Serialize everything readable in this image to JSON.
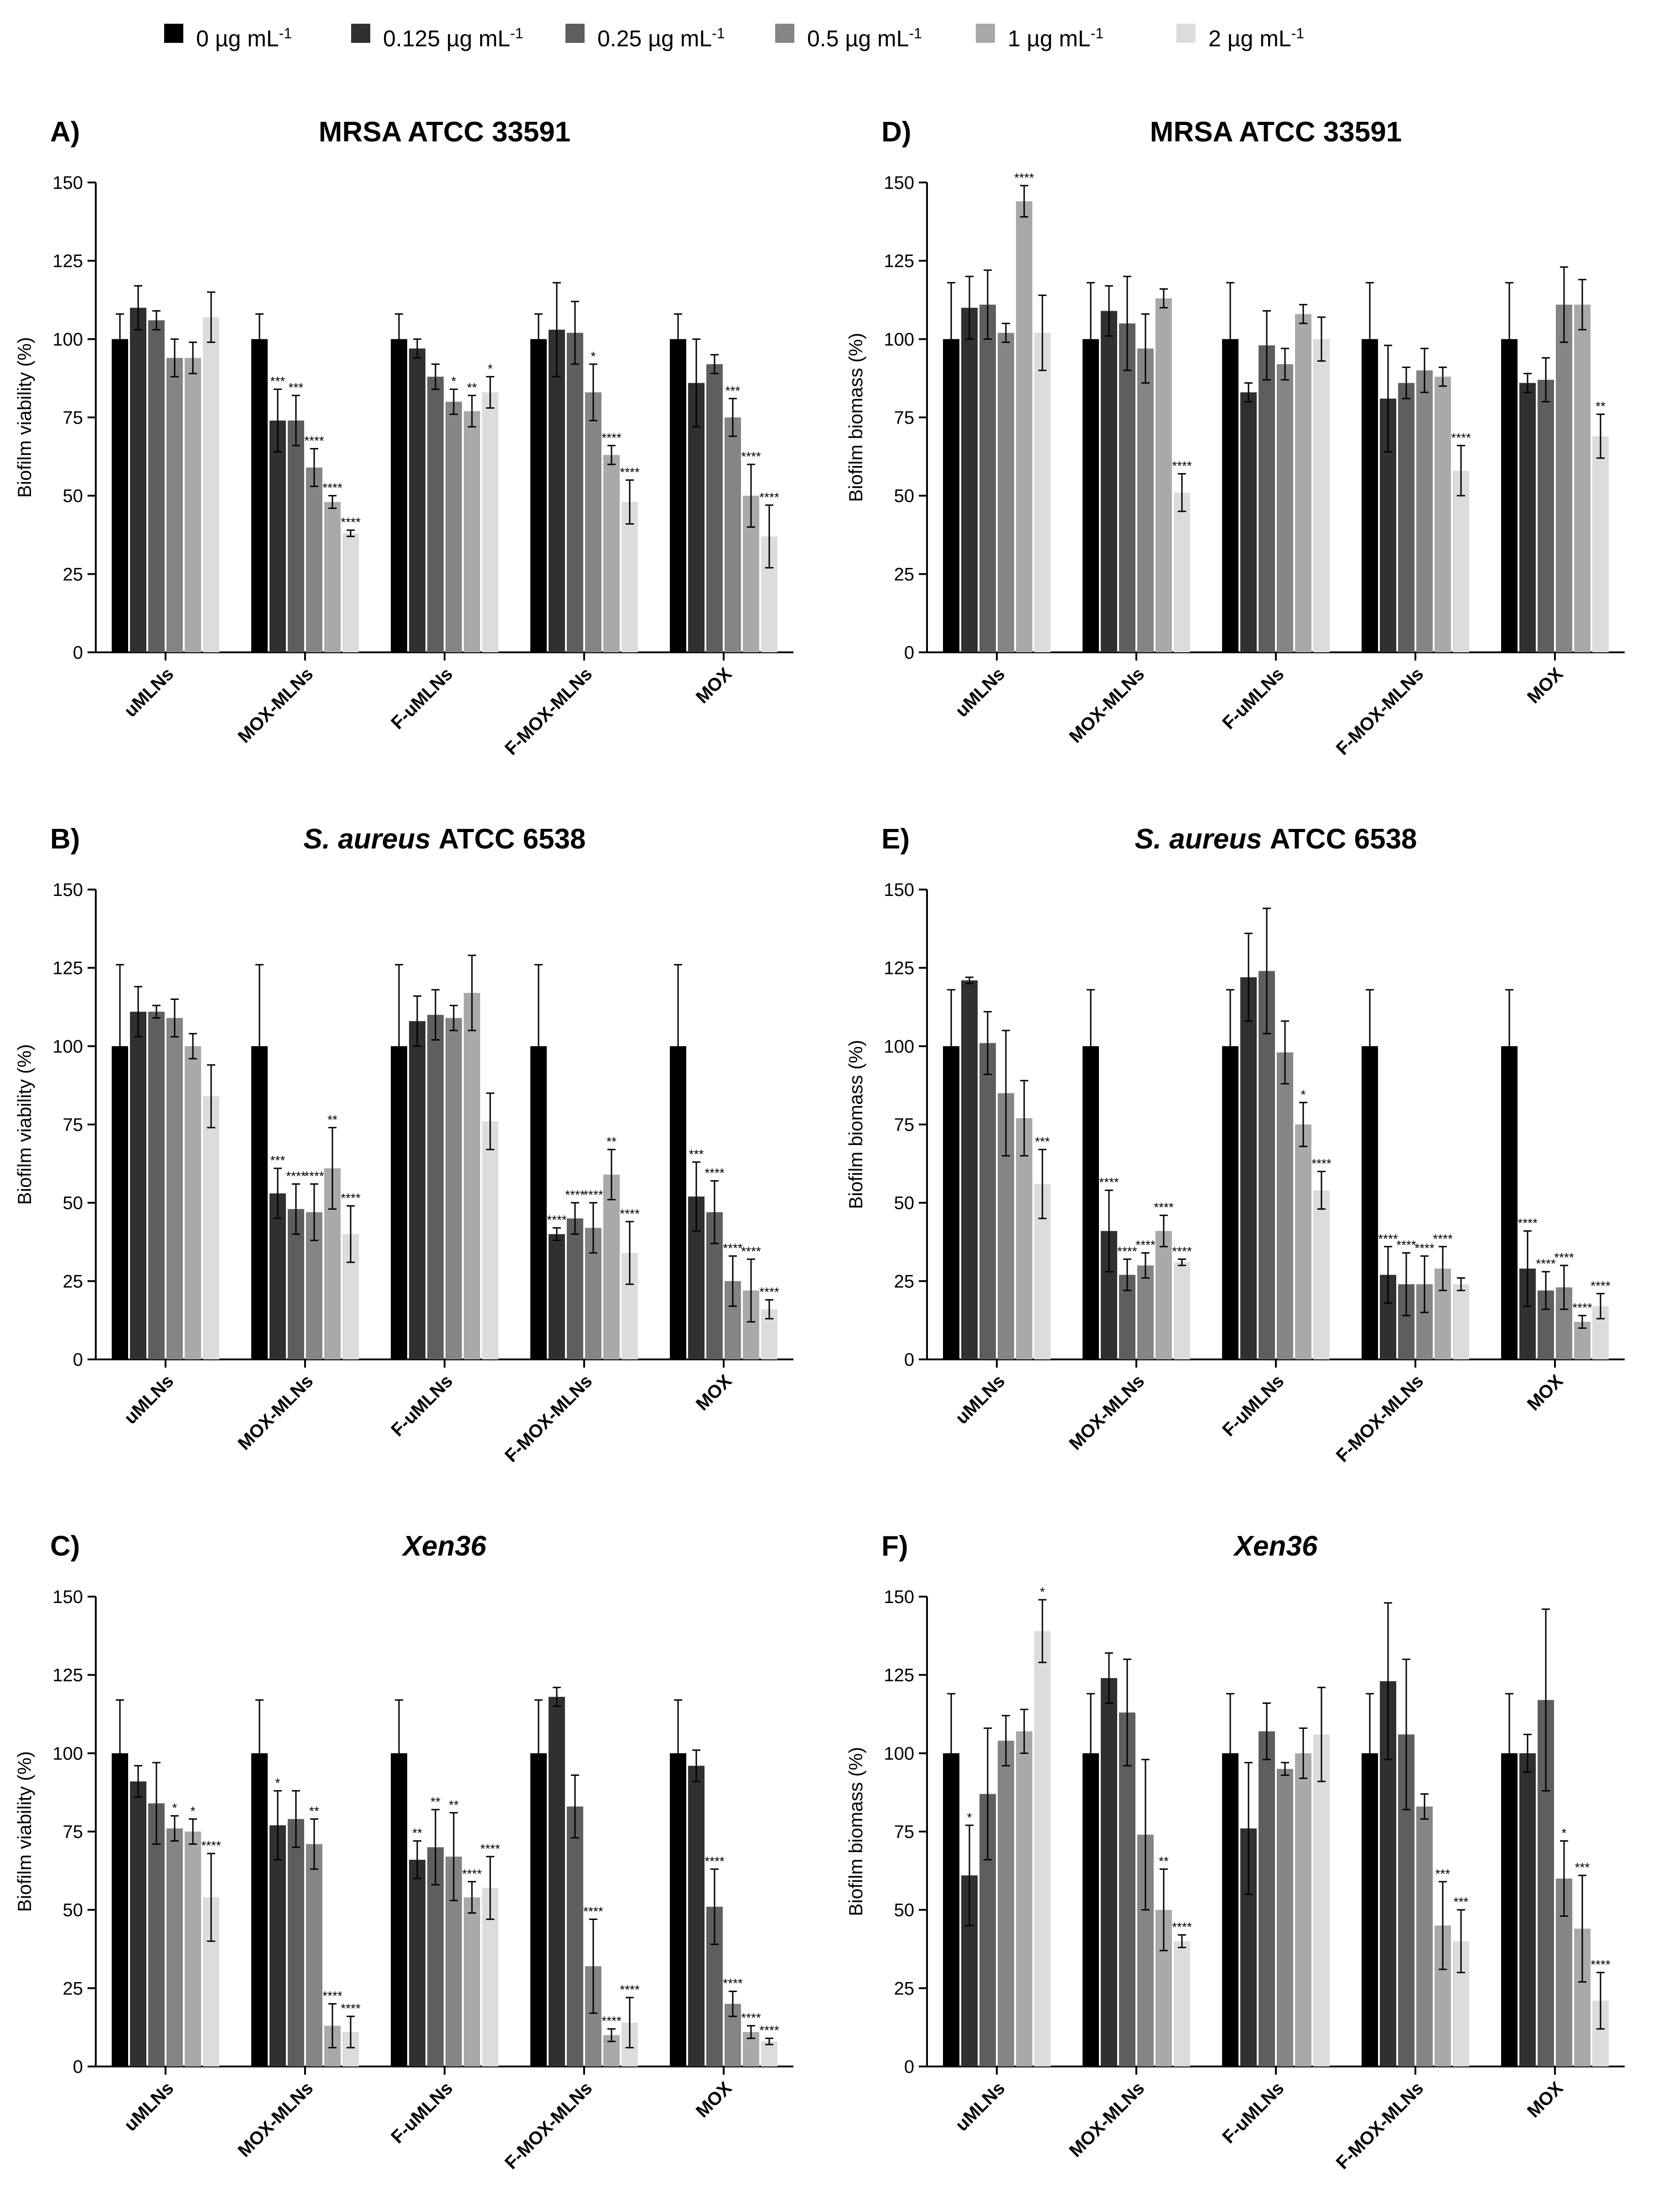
{
  "legend": {
    "items": [
      {
        "label": "0 µg mL",
        "sup": "-1",
        "color": "#000000"
      },
      {
        "label": "0.125 µg mL",
        "sup": "-1",
        "color": "#303030"
      },
      {
        "label": "0.25 µg mL",
        "sup": "-1",
        "color": "#5e5e5e"
      },
      {
        "label": "0.5 µg mL",
        "sup": "-1",
        "color": "#858585"
      },
      {
        "label": "1 µg mL",
        "sup": "-1",
        "color": "#a9a9a9"
      },
      {
        "label": "2 µg mL",
        "sup": "-1",
        "color": "#dcdcdc"
      }
    ]
  },
  "chart_data": [
    {
      "panel": "A)",
      "type": "bar",
      "title": "MRSA ATCC 33591",
      "title_italic": "",
      "ylabel": "Biofilm viability (%)",
      "ylim": [
        0,
        150
      ],
      "yticks": [
        0,
        25,
        50,
        75,
        100,
        125,
        150
      ],
      "categories": [
        "uMLNs",
        "MOX-MLNs",
        "F-uMLNs",
        "F-MOX-MLNs",
        "MOX"
      ],
      "values": [
        [
          100,
          110,
          106,
          94,
          94,
          107
        ],
        [
          100,
          74,
          74,
          59,
          48,
          38
        ],
        [
          100,
          97,
          88,
          80,
          77,
          83
        ],
        [
          100,
          103,
          102,
          83,
          63,
          48
        ],
        [
          100,
          86,
          92,
          75,
          50,
          37
        ]
      ],
      "errors": [
        [
          8,
          7,
          3,
          6,
          5,
          8
        ],
        [
          8,
          10,
          8,
          6,
          2,
          1
        ],
        [
          8,
          3,
          4,
          4,
          5,
          5
        ],
        [
          8,
          15,
          10,
          9,
          3,
          7
        ],
        [
          8,
          14,
          3,
          6,
          10,
          10
        ]
      ],
      "stars": [
        [
          "",
          "",
          "",
          "",
          "",
          ""
        ],
        [
          "",
          "***",
          "***",
          "****",
          "****",
          "****"
        ],
        [
          "",
          "",
          "",
          "*",
          "**",
          "*"
        ],
        [
          "",
          "",
          "",
          "*",
          "****",
          "****"
        ],
        [
          "",
          "",
          "",
          "***",
          "****",
          "****"
        ]
      ]
    },
    {
      "panel": "D)",
      "type": "bar",
      "title": "MRSA ATCC 33591",
      "title_italic": "",
      "ylabel": "Biofilm biomass (%)",
      "ylim": [
        0,
        150
      ],
      "yticks": [
        0,
        25,
        50,
        75,
        100,
        125,
        150
      ],
      "categories": [
        "uMLNs",
        "MOX-MLNs",
        "F-uMLNs",
        "F-MOX-MLNs",
        "MOX"
      ],
      "values": [
        [
          100,
          110,
          111,
          102,
          144,
          102
        ],
        [
          100,
          109,
          105,
          97,
          113,
          51
        ],
        [
          100,
          83,
          98,
          92,
          108,
          100
        ],
        [
          100,
          81,
          86,
          90,
          88,
          58
        ],
        [
          100,
          86,
          87,
          111,
          111,
          69
        ]
      ],
      "errors": [
        [
          18,
          10,
          11,
          3,
          5,
          12
        ],
        [
          18,
          8,
          15,
          11,
          3,
          6
        ],
        [
          18,
          3,
          11,
          5,
          3,
          7
        ],
        [
          18,
          17,
          5,
          7,
          3,
          8
        ],
        [
          18,
          3,
          7,
          12,
          8,
          7
        ]
      ],
      "stars": [
        [
          "",
          "",
          "",
          "",
          "****",
          ""
        ],
        [
          "",
          "",
          "",
          "",
          "",
          "****"
        ],
        [
          "",
          "",
          "",
          "",
          "",
          ""
        ],
        [
          "",
          "",
          "",
          "",
          "",
          "****"
        ],
        [
          "",
          "",
          "",
          "",
          "",
          "**"
        ]
      ]
    },
    {
      "panel": "B)",
      "type": "bar",
      "title": "ATCC 6538",
      "title_italic": "S. aureus",
      "ylabel": "Biofilm viability (%)",
      "ylim": [
        0,
        150
      ],
      "yticks": [
        0,
        25,
        50,
        75,
        100,
        125,
        150
      ],
      "categories": [
        "uMLNs",
        "MOX-MLNs",
        "F-uMLNs",
        "F-MOX-MLNs",
        "MOX"
      ],
      "values": [
        [
          100,
          111,
          111,
          109,
          100,
          84
        ],
        [
          100,
          53,
          48,
          47,
          61,
          40
        ],
        [
          100,
          108,
          110,
          109,
          117,
          76
        ],
        [
          100,
          40,
          45,
          42,
          59,
          34
        ],
        [
          100,
          52,
          47,
          25,
          22,
          16
        ]
      ],
      "errors": [
        [
          26,
          8,
          2,
          6,
          4,
          10
        ],
        [
          26,
          8,
          8,
          9,
          13,
          9
        ],
        [
          26,
          8,
          8,
          4,
          12,
          9
        ],
        [
          26,
          2,
          5,
          8,
          8,
          10
        ],
        [
          26,
          11,
          10,
          8,
          10,
          3
        ]
      ],
      "stars": [
        [
          "",
          "",
          "",
          "",
          "",
          ""
        ],
        [
          "",
          "***",
          "****",
          "****",
          "**",
          "****"
        ],
        [
          "",
          "",
          "",
          "",
          "",
          ""
        ],
        [
          "",
          "****",
          "****",
          "****",
          "**",
          "****"
        ],
        [
          "",
          "***",
          "****",
          "****",
          "****",
          "****"
        ]
      ]
    },
    {
      "panel": "E)",
      "type": "bar",
      "title": "ATCC 6538",
      "title_italic": "S. aureus",
      "ylabel": "Biofilm biomass (%)",
      "ylim": [
        0,
        150
      ],
      "yticks": [
        0,
        25,
        50,
        75,
        100,
        125,
        150
      ],
      "categories": [
        "uMLNs",
        "MOX-MLNs",
        "F-uMLNs",
        "F-MOX-MLNs",
        "MOX"
      ],
      "values": [
        [
          100,
          121,
          101,
          85,
          77,
          56
        ],
        [
          100,
          41,
          27,
          30,
          41,
          31
        ],
        [
          100,
          122,
          124,
          98,
          75,
          54
        ],
        [
          100,
          27,
          24,
          24,
          29,
          24
        ],
        [
          100,
          29,
          22,
          23,
          12,
          17
        ]
      ],
      "errors": [
        [
          18,
          1,
          10,
          20,
          12,
          11
        ],
        [
          18,
          13,
          5,
          4,
          5,
          1
        ],
        [
          18,
          14,
          20,
          10,
          7,
          6
        ],
        [
          18,
          9,
          10,
          9,
          7,
          2
        ],
        [
          18,
          12,
          6,
          7,
          2,
          4
        ]
      ],
      "stars": [
        [
          "",
          "",
          "",
          "",
          "",
          "***"
        ],
        [
          "",
          "****",
          "****",
          "****",
          "****",
          "****"
        ],
        [
          "",
          "",
          "",
          "",
          "*",
          "****"
        ],
        [
          "",
          "****",
          "****",
          "****",
          "****",
          ""
        ],
        [
          "",
          "****",
          "****",
          "****",
          "****",
          "****"
        ]
      ]
    },
    {
      "panel": "C)",
      "type": "bar",
      "title": "",
      "title_italic": "Xen36",
      "ylabel": "Biofilm viability (%)",
      "ylim": [
        0,
        150
      ],
      "yticks": [
        0,
        25,
        50,
        75,
        100,
        125,
        150
      ],
      "categories": [
        "uMLNs",
        "MOX-MLNs",
        "F-uMLNs",
        "F-MOX-MLNs",
        "MOX"
      ],
      "values": [
        [
          100,
          91,
          84,
          76,
          75,
          54
        ],
        [
          100,
          77,
          79,
          71,
          13,
          11
        ],
        [
          100,
          66,
          70,
          67,
          54,
          57
        ],
        [
          100,
          118,
          83,
          32,
          10,
          14
        ],
        [
          100,
          96,
          51,
          20,
          11,
          8
        ]
      ],
      "errors": [
        [
          17,
          5,
          13,
          4,
          4,
          14
        ],
        [
          17,
          11,
          9,
          8,
          7,
          5
        ],
        [
          17,
          6,
          12,
          14,
          5,
          10
        ],
        [
          17,
          3,
          10,
          15,
          2,
          8
        ],
        [
          17,
          5,
          12,
          4,
          2,
          1
        ]
      ],
      "stars": [
        [
          "",
          "",
          "",
          "*",
          "*",
          "****"
        ],
        [
          "",
          "*",
          "",
          "**",
          "****",
          "****"
        ],
        [
          "",
          "**",
          "**",
          "**",
          "****",
          "****"
        ],
        [
          "",
          "",
          "",
          "****",
          "****",
          "****"
        ],
        [
          "",
          "",
          "****",
          "****",
          "****",
          "****"
        ]
      ]
    },
    {
      "panel": "F)",
      "type": "bar",
      "title": "",
      "title_italic": "Xen36",
      "ylabel": "Biofilm biomass (%)",
      "ylim": [
        0,
        150
      ],
      "yticks": [
        0,
        25,
        50,
        75,
        100,
        125,
        150
      ],
      "categories": [
        "uMLNs",
        "MOX-MLNs",
        "F-uMLNs",
        "F-MOX-MLNs",
        "MOX"
      ],
      "values": [
        [
          100,
          61,
          87,
          104,
          107,
          139
        ],
        [
          100,
          124,
          113,
          74,
          50,
          40
        ],
        [
          100,
          76,
          107,
          95,
          100,
          106
        ],
        [
          100,
          123,
          106,
          83,
          45,
          40
        ],
        [
          100,
          100,
          117,
          60,
          44,
          21
        ]
      ],
      "errors": [
        [
          19,
          16,
          21,
          8,
          7,
          10
        ],
        [
          19,
          8,
          17,
          24,
          13,
          2
        ],
        [
          19,
          21,
          9,
          2,
          8,
          15
        ],
        [
          19,
          25,
          24,
          4,
          14,
          10
        ],
        [
          19,
          6,
          29,
          12,
          17,
          9
        ]
      ],
      "stars": [
        [
          "",
          "*",
          "",
          "",
          "",
          "*"
        ],
        [
          "",
          "",
          "",
          "",
          "**",
          "****"
        ],
        [
          "",
          "",
          "",
          "",
          "",
          ""
        ],
        [
          "",
          "",
          "",
          "",
          "***",
          "***"
        ],
        [
          "",
          "",
          "",
          "*",
          "***",
          "****"
        ]
      ]
    }
  ]
}
